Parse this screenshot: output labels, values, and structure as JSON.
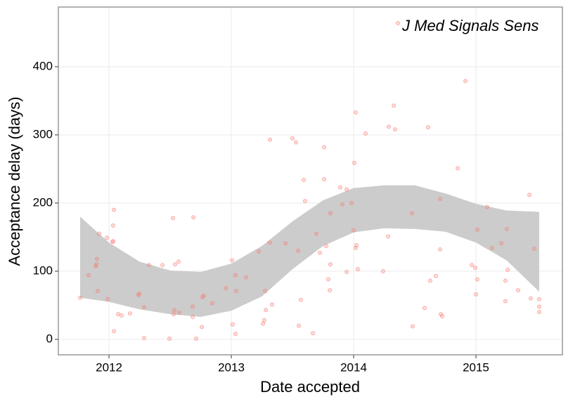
{
  "chart_data": {
    "type": "scatter",
    "x_label": "Date accepted",
    "y_label": "Acceptance delay (days)",
    "xlim": [
      2011.586,
      2015.707
    ],
    "ylim": [
      -22.7,
      487.6
    ],
    "xticks": [
      2012,
      2013,
      2014,
      2015
    ],
    "yticks": [
      0,
      100,
      200,
      300,
      400
    ],
    "grid": true,
    "legend": "top-right",
    "series": [
      {
        "name": "J Med Signals Sens",
        "color": "#f8766d",
        "x": [
          2011.764,
          2011.833,
          2011.891,
          2011.897,
          2011.902,
          2011.908,
          2011.92,
          2011.983,
          2011.989,
          2012.029,
          2012.034,
          2012.034,
          2012.04,
          2012.04,
          2012.075,
          2012.103,
          2012.172,
          2012.241,
          2012.247,
          2012.287,
          2012.287,
          2012.328,
          2012.437,
          2012.494,
          2012.523,
          2012.529,
          2012.534,
          2012.54,
          2012.569,
          2012.575,
          2012.684,
          2012.684,
          2012.69,
          2012.713,
          2012.759,
          2012.764,
          2012.776,
          2012.845,
          2012.954,
          2013.006,
          2013.011,
          2013.034,
          2013.034,
          2013.04,
          2013.121,
          2013.224,
          2013.259,
          2013.27,
          2013.276,
          2013.282,
          2013.316,
          2013.316,
          2013.333,
          2013.443,
          2013.5,
          2013.529,
          2013.546,
          2013.552,
          2013.569,
          2013.592,
          2013.603,
          2013.667,
          2013.695,
          2013.724,
          2013.759,
          2013.759,
          2013.776,
          2013.793,
          2013.805,
          2013.81,
          2013.81,
          2013.891,
          2013.908,
          2013.943,
          2013.943,
          2013.983,
          2014.0,
          2014.006,
          2014.017,
          2014.017,
          2014.023,
          2014.034,
          2014.098,
          2014.241,
          2014.282,
          2014.287,
          2014.328,
          2014.339,
          2014.477,
          2014.483,
          2014.58,
          2014.609,
          2014.626,
          2014.672,
          2014.707,
          2014.707,
          2014.713,
          2014.724,
          2014.851,
          2014.914,
          2014.966,
          2014.994,
          2015.011,
          2015.011,
          2015.0,
          2015.092,
          2015.132,
          2015.207,
          2015.241,
          2015.241,
          2015.253,
          2015.259,
          2015.345,
          2015.437,
          2015.448,
          2015.477,
          2015.517,
          2015.517,
          2015.517
        ],
        "values": [
          61,
          94,
          107,
          110,
          118,
          71,
          155,
          149,
          59,
          143,
          144,
          167,
          190,
          12,
          37,
          35,
          38,
          65,
          67,
          2,
          47,
          109,
          109,
          1,
          178,
          37,
          43,
          110,
          114,
          39,
          48,
          33,
          179,
          1,
          18,
          62,
          64,
          53,
          75,
          116,
          22,
          8,
          94,
          71,
          91,
          129,
          23,
          28,
          71,
          43,
          142,
          293,
          51,
          141,
          295,
          289,
          130,
          20,
          58,
          234,
          203,
          9,
          155,
          127,
          282,
          235,
          137,
          88,
          72,
          110,
          185,
          223,
          198,
          220,
          99,
          200,
          160,
          259,
          333,
          134,
          138,
          103,
          302,
          100,
          151,
          312,
          343,
          308,
          185,
          19,
          46,
          311,
          86,
          93,
          132,
          206,
          37,
          34,
          251,
          379,
          109,
          105,
          161,
          88,
          66,
          194,
          134,
          141,
          86,
          56,
          162,
          102,
          72,
          212,
          60,
          133,
          59,
          48,
          40
        ]
      }
    ],
    "band": {
      "color": "#cccccc",
      "x": [
        2011.764,
        2012.0,
        2012.25,
        2012.5,
        2012.75,
        2013.0,
        2013.25,
        2013.5,
        2013.75,
        2014.0,
        2014.25,
        2014.5,
        2014.75,
        2015.0,
        2015.25,
        2015.517
      ],
      "upper": [
        180,
        142,
        114,
        101,
        99,
        111,
        137,
        173,
        204,
        222,
        226,
        226,
        214,
        199,
        189,
        187
      ],
      "lower": [
        61,
        55,
        44,
        37,
        33,
        42,
        63,
        103,
        137,
        157,
        163,
        162,
        158,
        142,
        116,
        70
      ]
    }
  }
}
